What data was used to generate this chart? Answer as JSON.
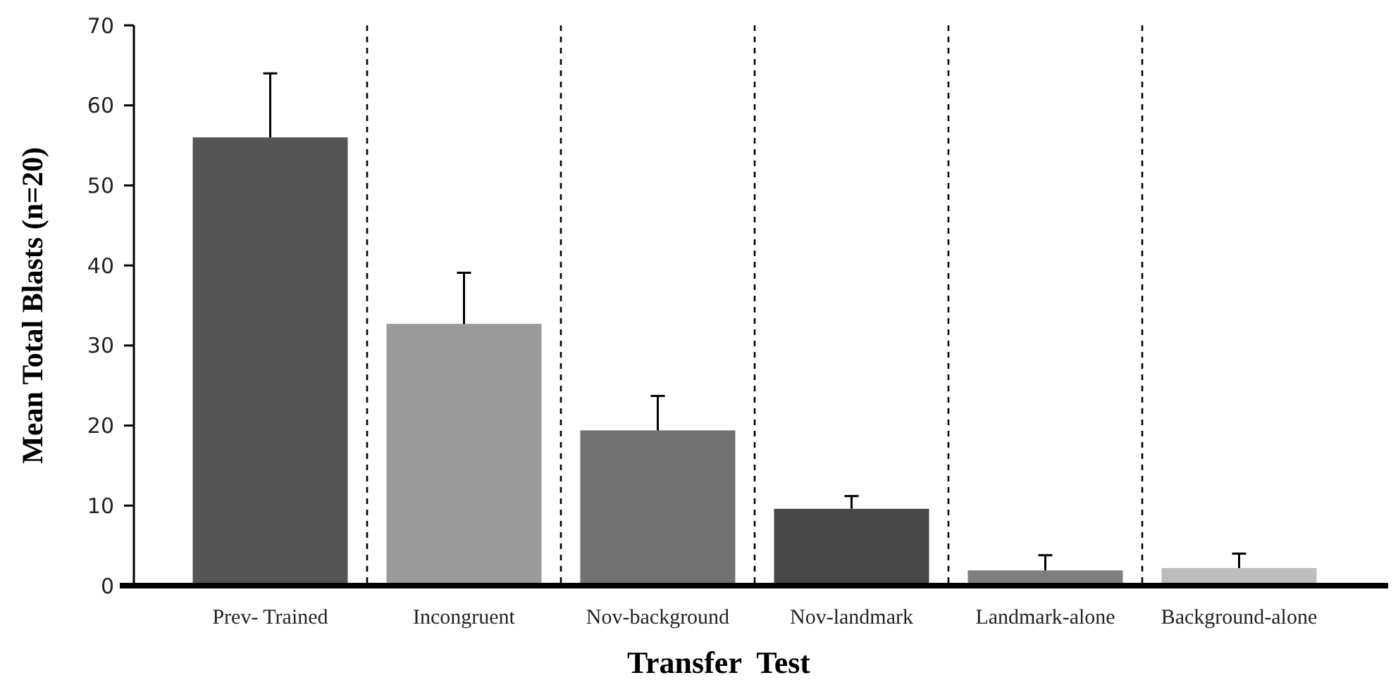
{
  "chart_data": {
    "type": "bar",
    "xlabel": "Transfer  Test",
    "ylabel": "Mean Total Blasts (n=20)",
    "categories": [
      "Prev- Trained",
      "Incongruent",
      "Nov-background",
      "Nov-landmark",
      "Landmark-alone",
      "Background-alone"
    ],
    "values": [
      56,
      32.7,
      19.4,
      9.6,
      1.9,
      2.2
    ],
    "errors": [
      [
        56,
        64
      ],
      [
        32.7,
        39.1
      ],
      [
        19.4,
        23.7
      ],
      [
        9.6,
        11.2
      ],
      [
        1.9,
        3.8
      ],
      [
        2.2,
        4
      ]
    ],
    "colors": [
      "#555555",
      "#9a9a9a",
      "#727272",
      "#474747",
      "#7f7f7f",
      "#bdbdbd"
    ],
    "ylim": [
      0,
      70
    ],
    "yticks": [
      0,
      10,
      20,
      30,
      40,
      50,
      60,
      70
    ]
  }
}
